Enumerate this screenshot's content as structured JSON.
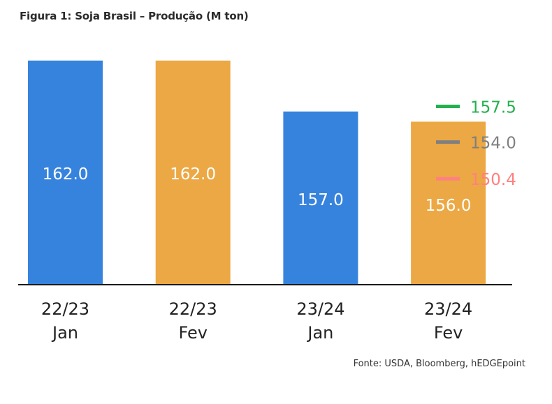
{
  "chart_data": {
    "type": "bar",
    "title": "Figura 1: Soja Brasil – Produção (M ton)",
    "source": "Fonte: USDA, Bloomberg, hEDGEpoint",
    "categories": [
      [
        "22/23",
        "Jan"
      ],
      [
        "22/23",
        "Fev"
      ],
      [
        "23/24",
        "Jan"
      ],
      [
        "23/24",
        "Fev"
      ]
    ],
    "values": [
      162.0,
      162.0,
      157.0,
      156.0
    ],
    "value_labels": [
      "162.0",
      "162.0",
      "157.0",
      "156.0"
    ],
    "bar_colors": [
      "#3683DD",
      "#ECA844",
      "#3683DD",
      "#ECA844"
    ],
    "ylim": [
      140,
      165
    ],
    "grid": false,
    "xlabel": "",
    "ylabel": "",
    "markers": [
      {
        "value": 157.5,
        "label": "157.5",
        "color": "#22B14C"
      },
      {
        "value": 154.0,
        "label": "154.0",
        "color": "#7F7F7F"
      },
      {
        "value": 150.4,
        "label": "150.4",
        "color": "#FF8080"
      }
    ]
  }
}
